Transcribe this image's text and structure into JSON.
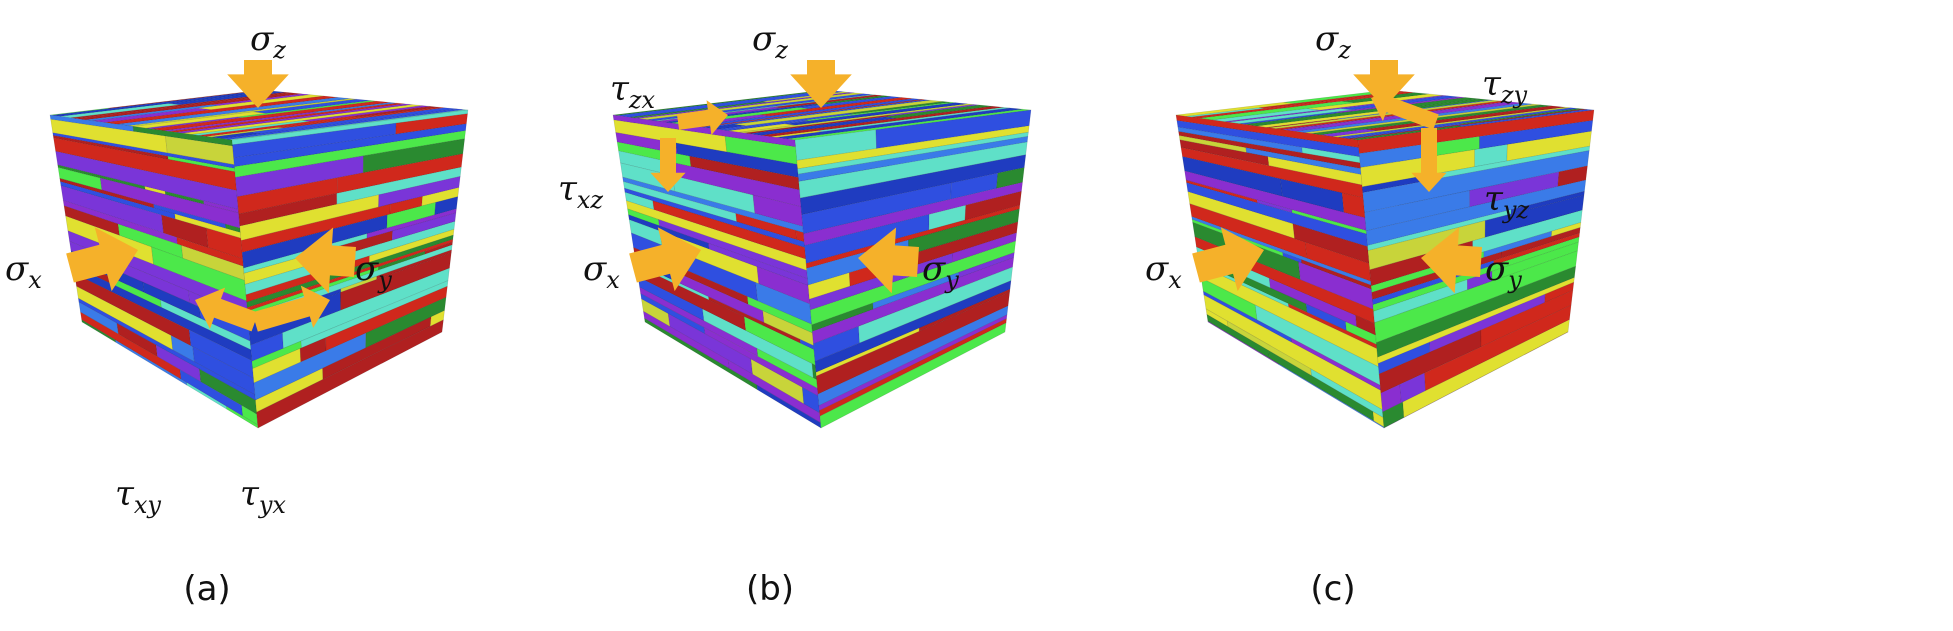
{
  "panels": [
    {
      "caption": "(a)",
      "labels": [
        {
          "id": "sigma-z",
          "base": "σ",
          "sub": "z"
        },
        {
          "id": "sigma-x",
          "base": "σ",
          "sub": "x"
        },
        {
          "id": "sigma-y",
          "base": "σ",
          "sub": "y"
        },
        {
          "id": "tau-xy",
          "base": "τ",
          "sub": "xy"
        },
        {
          "id": "tau-yx",
          "base": "τ",
          "sub": "yx"
        }
      ]
    },
    {
      "caption": "(b)",
      "labels": [
        {
          "id": "sigma-z",
          "base": "σ",
          "sub": "z"
        },
        {
          "id": "tau-zx",
          "base": "τ",
          "sub": "zx"
        },
        {
          "id": "tau-xz",
          "base": "τ",
          "sub": "xz"
        },
        {
          "id": "sigma-x",
          "base": "σ",
          "sub": "x"
        },
        {
          "id": "sigma-y",
          "base": "σ",
          "sub": "y"
        }
      ]
    },
    {
      "caption": "(c)",
      "labels": [
        {
          "id": "sigma-z",
          "base": "σ",
          "sub": "z"
        },
        {
          "id": "tau-zy",
          "base": "τ",
          "sub": "zy"
        },
        {
          "id": "tau-yz",
          "base": "τ",
          "sub": "yz"
        },
        {
          "id": "sigma-x",
          "base": "σ",
          "sub": "x"
        },
        {
          "id": "sigma-y",
          "base": "σ",
          "sub": "y"
        }
      ]
    }
  ],
  "colors": {
    "arrow": "#f5b12a",
    "grains": [
      "#2f4fe0",
      "#3a7be8",
      "#4ce84a",
      "#c8d43a",
      "#d0281c",
      "#7a35d8",
      "#8a2ed0",
      "#5fe0c8",
      "#b02020",
      "#1f3cc0",
      "#e0e030",
      "#2a8a30"
    ]
  }
}
